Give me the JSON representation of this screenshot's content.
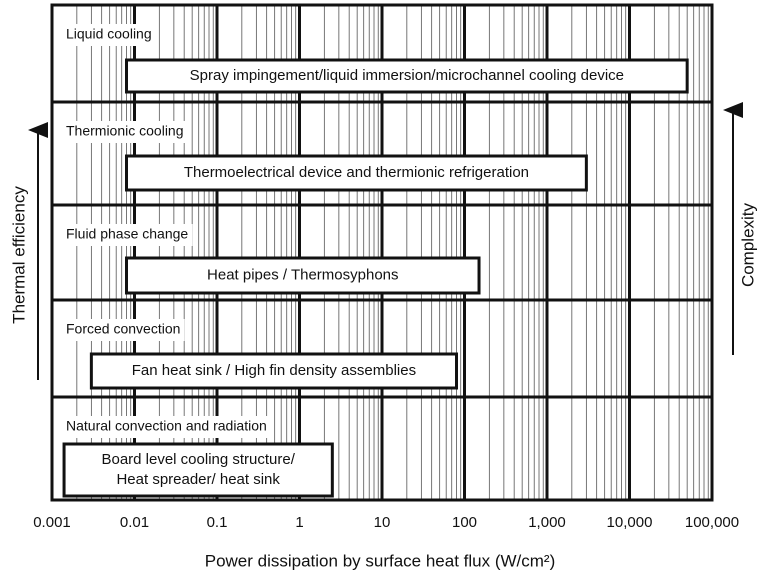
{
  "chart_data": {
    "type": "range-bar",
    "x_label": "Power dissipation by surface heat flux (W/cm²)",
    "left_arrow_label": "Thermal efficiency",
    "right_arrow_label": "Complexity",
    "log_x": true,
    "grid": true,
    "xlim": [
      0.001,
      100000
    ],
    "xticks": [
      0.001,
      0.01,
      0.1,
      1,
      10,
      100,
      {
        "value": 1000,
        "label": "1,000"
      },
      {
        "value": 10000,
        "label": "10,000"
      },
      {
        "value": 100000,
        "label": "100,000"
      }
    ],
    "categories": [
      "Liquid cooling",
      "Thermionic cooling",
      "Fluid phase change",
      "Forced convection",
      "Natural convection and radiation"
    ],
    "bars": [
      {
        "label": [
          "Spray impingement/liquid immersion/microchannel cooling device"
        ],
        "start": 0.008,
        "end": 50000
      },
      {
        "label": [
          "Thermoelectrical device and thermionic refrigeration"
        ],
        "start": 0.008,
        "end": 3000
      },
      {
        "label": [
          "Heat pipes / Thermosyphons"
        ],
        "start": 0.008,
        "end": 150
      },
      {
        "label": [
          "Fan heat sink / High fin density assemblies"
        ],
        "start": 0.003,
        "end": 80
      },
      {
        "label": [
          "Board level cooling structure/",
          "Heat spreader/ heat sink"
        ],
        "start": 0.0014,
        "end": 2.5
      }
    ]
  }
}
